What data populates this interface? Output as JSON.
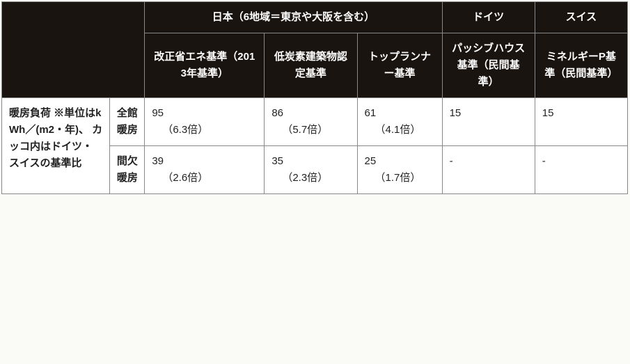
{
  "header_bg": "#1a1410",
  "header_fg": "#ffffff",
  "body_bg": "#ffffff",
  "border_color": "#888888",
  "countries": {
    "japan": "日本（6地域＝東京や大阪を含む）",
    "germany": "ドイツ",
    "switzerland": "スイス"
  },
  "standards": {
    "jp1": "改正省エネ基準（2013年基準）",
    "jp2": "低炭素建築物認定基準",
    "jp3": "トップランナー基準",
    "de": "パッシブハウス基準（民間基準）",
    "ch": "ミネルギーP基準（民間基準）"
  },
  "row_label": "暖房負荷\n※単位はkWh／(m2・年)、\nカッコ内はドイツ・スイスの基準比",
  "modes": {
    "zenkan": "全館暖房",
    "kanketsu": "間欠暖房"
  },
  "data": {
    "zenkan": {
      "jp1": {
        "value": "95",
        "ratio": "（6.3倍）"
      },
      "jp2": {
        "value": "86",
        "ratio": "（5.7倍）"
      },
      "jp3": {
        "value": "61",
        "ratio": "（4.1倍）"
      },
      "de": {
        "value": "15",
        "ratio": ""
      },
      "ch": {
        "value": "15",
        "ratio": ""
      }
    },
    "kanketsu": {
      "jp1": {
        "value": "39",
        "ratio": "（2.6倍）"
      },
      "jp2": {
        "value": "35",
        "ratio": "（2.3倍）"
      },
      "jp3": {
        "value": "25",
        "ratio": "（1.7倍）"
      },
      "de": {
        "value": "-",
        "ratio": ""
      },
      "ch": {
        "value": "-",
        "ratio": ""
      }
    }
  }
}
